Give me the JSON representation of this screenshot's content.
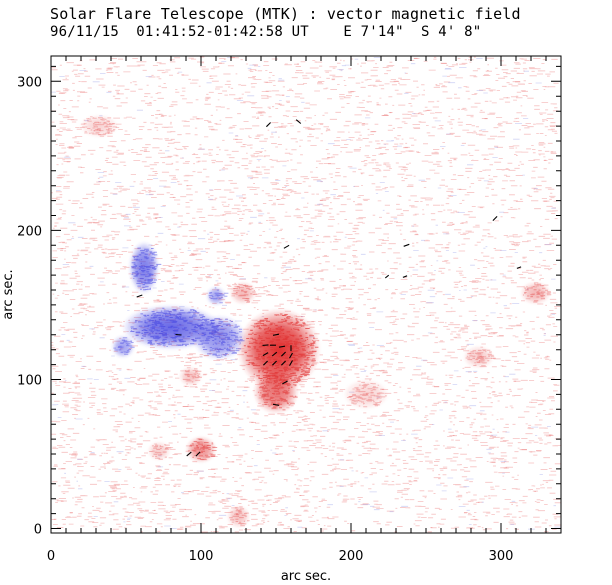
{
  "chart_data": {
    "type": "heatmap",
    "title": "Solar Flare Telescope (MTK) : vector magnetic field",
    "subtitle": "96/11/15  01:41:52-01:42:58 UT    E 7'14\"  S 4' 8\"",
    "xlabel": "arc sec.",
    "ylabel": "arc sec.",
    "xlim": [
      0,
      340
    ],
    "ylim": [
      -3,
      317
    ],
    "x_ticks": [
      0,
      100,
      200,
      300
    ],
    "y_ticks": [
      0,
      100,
      200,
      300
    ],
    "colors": {
      "positive": "#e03030",
      "negative": "#4040e0",
      "background_noise": "#f0a0a0",
      "vectors": "#000000"
    },
    "regions": [
      {
        "name": "positive-spot-core",
        "polarity": "positive",
        "x": 152,
        "y": 120,
        "rx": 22,
        "ry": 22,
        "strength": 1.0
      },
      {
        "name": "positive-spot-lobe",
        "polarity": "positive",
        "x": 150,
        "y": 92,
        "rx": 12,
        "ry": 12,
        "strength": 0.7
      },
      {
        "name": "negative-plage-main",
        "polarity": "negative",
        "x": 80,
        "y": 135,
        "rx": 26,
        "ry": 12,
        "strength": 0.8
      },
      {
        "name": "negative-plage-arm",
        "polarity": "negative",
        "x": 62,
        "y": 175,
        "rx": 8,
        "ry": 14,
        "strength": 0.7
      },
      {
        "name": "negative-plage-east",
        "polarity": "negative",
        "x": 112,
        "y": 128,
        "rx": 14,
        "ry": 12,
        "strength": 0.6
      },
      {
        "name": "negative-plage-west",
        "polarity": "negative",
        "x": 48,
        "y": 122,
        "rx": 6,
        "ry": 6,
        "strength": 0.5
      },
      {
        "name": "negative-knot",
        "polarity": "negative",
        "x": 110,
        "y": 156,
        "rx": 5,
        "ry": 5,
        "strength": 0.5
      },
      {
        "name": "positive-knot-1",
        "polarity": "positive",
        "x": 100,
        "y": 53,
        "rx": 8,
        "ry": 7,
        "strength": 0.55
      },
      {
        "name": "positive-knot-2",
        "polarity": "positive",
        "x": 128,
        "y": 158,
        "rx": 7,
        "ry": 6,
        "strength": 0.35
      },
      {
        "name": "positive-knot-3",
        "polarity": "positive",
        "x": 323,
        "y": 158,
        "rx": 8,
        "ry": 6,
        "strength": 0.35
      },
      {
        "name": "positive-knot-4",
        "polarity": "positive",
        "x": 93,
        "y": 102,
        "rx": 6,
        "ry": 5,
        "strength": 0.3
      },
      {
        "name": "positive-knot-5",
        "polarity": "positive",
        "x": 125,
        "y": 8,
        "rx": 6,
        "ry": 6,
        "strength": 0.3
      },
      {
        "name": "positive-knot-6",
        "polarity": "positive",
        "x": 285,
        "y": 115,
        "rx": 8,
        "ry": 6,
        "strength": 0.25
      },
      {
        "name": "positive-knot-7",
        "polarity": "positive",
        "x": 72,
        "y": 52,
        "rx": 6,
        "ry": 5,
        "strength": 0.25
      },
      {
        "name": "positive-knot-8",
        "polarity": "positive",
        "x": 32,
        "y": 270,
        "rx": 10,
        "ry": 6,
        "strength": 0.2
      },
      {
        "name": "positive-knot-9",
        "polarity": "positive",
        "x": 210,
        "y": 90,
        "rx": 12,
        "ry": 8,
        "strength": 0.2
      }
    ],
    "vectors": [
      {
        "x": 145,
        "y": 271,
        "angle": 45,
        "length": 4
      },
      {
        "x": 165,
        "y": 273,
        "angle": -40,
        "length": 4
      },
      {
        "x": 296,
        "y": 208,
        "angle": 45,
        "length": 4
      },
      {
        "x": 157,
        "y": 189,
        "angle": 30,
        "length": 4
      },
      {
        "x": 237,
        "y": 190,
        "angle": 20,
        "length": 4
      },
      {
        "x": 224,
        "y": 169,
        "angle": 40,
        "length": 3
      },
      {
        "x": 236,
        "y": 169,
        "angle": 20,
        "length": 3
      },
      {
        "x": 312,
        "y": 175,
        "angle": 20,
        "length": 3
      },
      {
        "x": 59,
        "y": 156,
        "angle": 20,
        "length": 4
      },
      {
        "x": 85,
        "y": 130,
        "angle": -5,
        "length": 4
      },
      {
        "x": 150,
        "y": 130,
        "angle": 10,
        "length": 4
      },
      {
        "x": 143,
        "y": 123,
        "angle": 5,
        "length": 4
      },
      {
        "x": 148,
        "y": 123,
        "angle": 0,
        "length": 4
      },
      {
        "x": 154,
        "y": 122,
        "angle": 10,
        "length": 4
      },
      {
        "x": 160,
        "y": 121,
        "angle": 90,
        "length": 4
      },
      {
        "x": 143,
        "y": 117,
        "angle": 30,
        "length": 4
      },
      {
        "x": 149,
        "y": 117,
        "angle": 40,
        "length": 4
      },
      {
        "x": 155,
        "y": 117,
        "angle": 45,
        "length": 4
      },
      {
        "x": 160,
        "y": 116,
        "angle": 60,
        "length": 4
      },
      {
        "x": 143,
        "y": 111,
        "angle": 45,
        "length": 4
      },
      {
        "x": 149,
        "y": 111,
        "angle": 45,
        "length": 4
      },
      {
        "x": 155,
        "y": 111,
        "angle": 45,
        "length": 4
      },
      {
        "x": 160,
        "y": 111,
        "angle": 60,
        "length": 4
      },
      {
        "x": 156,
        "y": 98,
        "angle": 30,
        "length": 4
      },
      {
        "x": 150,
        "y": 83,
        "angle": -10,
        "length": 4
      },
      {
        "x": 92,
        "y": 50,
        "angle": 40,
        "length": 4
      },
      {
        "x": 98,
        "y": 50,
        "angle": 45,
        "length": 4
      }
    ]
  }
}
